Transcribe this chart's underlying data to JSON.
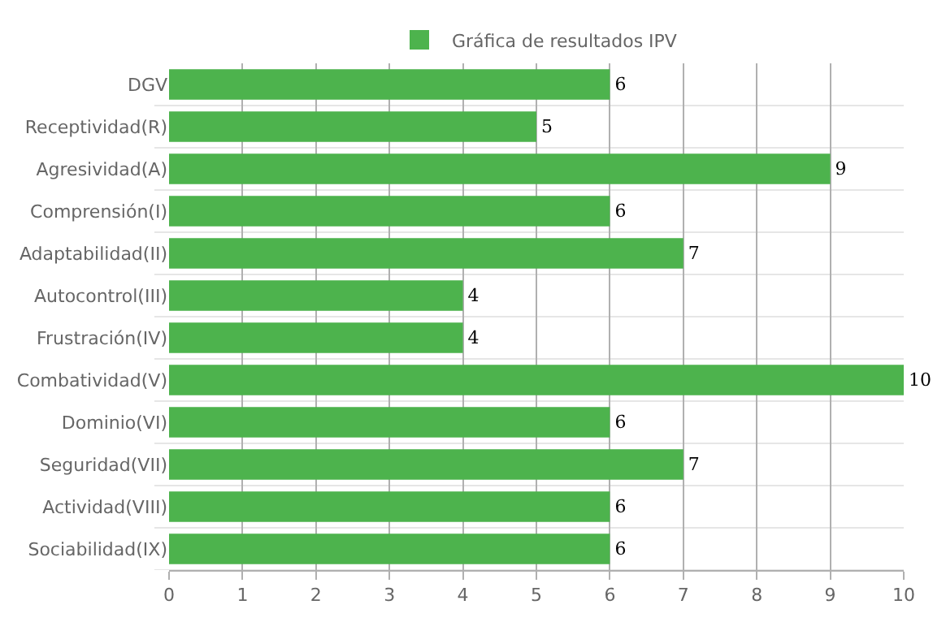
{
  "chart_data": {
    "type": "bar",
    "orientation": "horizontal",
    "categories": [
      "DGV",
      "Receptividad(R)",
      "Agresividad(A)",
      "Comprensión(I)",
      "Adaptabilidad(II)",
      "Autocontrol(III)",
      "Frustración(IV)",
      "Combatividad(V)",
      "Dominio(VI)",
      "Seguridad(VII)",
      "Actividad(VIII)",
      "Sociabilidad(IX)"
    ],
    "series": [
      {
        "name": "Gráfica de resultados IPV",
        "color": "#4db34d",
        "values": [
          6,
          5,
          9,
          6,
          7,
          4,
          4,
          10,
          6,
          7,
          6,
          6
        ]
      }
    ],
    "xlim": [
      0,
      10
    ],
    "xticks": [
      0,
      1,
      2,
      3,
      4,
      5,
      6,
      7,
      8,
      9,
      10
    ],
    "grid": true,
    "legend": "top",
    "data_labels": true
  }
}
